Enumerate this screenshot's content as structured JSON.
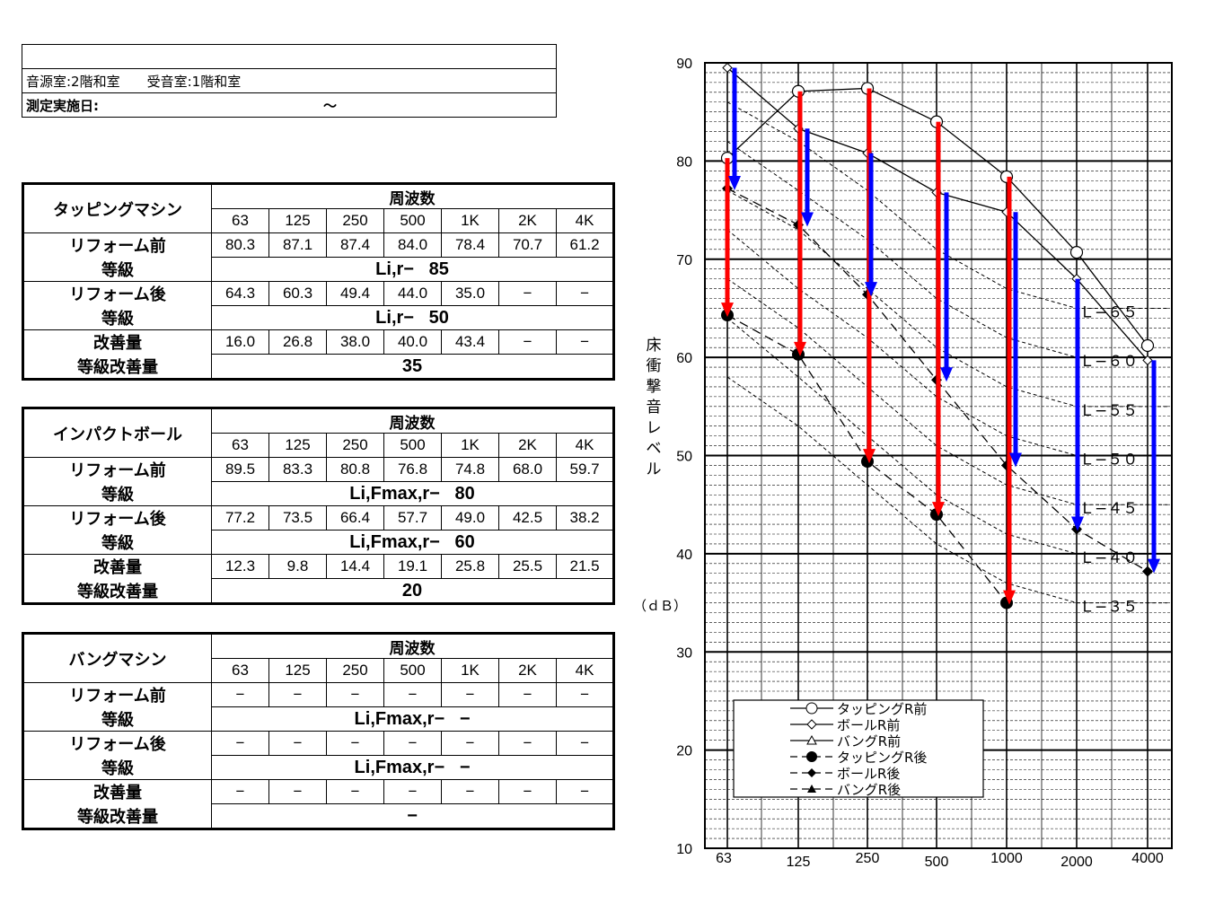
{
  "header": {
    "rooms": "音源室:2階和室　　受音室:1階和室",
    "date_label": "測定実施日:",
    "date_sep": "～"
  },
  "tables": [
    {
      "title": "タッピングマシン",
      "freq_label": "周波数",
      "freqs": [
        "63",
        "125",
        "250",
        "500",
        "1K",
        "2K",
        "4K"
      ],
      "before_label": "リフォーム前",
      "before": [
        "80.3",
        "87.1",
        "87.4",
        "84.0",
        "78.4",
        "70.7",
        "61.2"
      ],
      "grade_label": "等級",
      "grade_before_prefix": "Li,r−",
      "grade_before_value": "85",
      "after_label": "リフォーム後",
      "after": [
        "64.3",
        "60.3",
        "49.4",
        "44.0",
        "35.0",
        "−",
        "−"
      ],
      "grade_after_prefix": "Li,r−",
      "grade_after_value": "50",
      "improve_label": "改善量",
      "improve": [
        "16.0",
        "26.8",
        "38.0",
        "40.0",
        "43.4",
        "−",
        "−"
      ],
      "grade_improve_label": "等級改善量",
      "grade_improve_value": "35"
    },
    {
      "title": "インパクトボール",
      "freq_label": "周波数",
      "freqs": [
        "63",
        "125",
        "250",
        "500",
        "1K",
        "2K",
        "4K"
      ],
      "before_label": "リフォーム前",
      "before": [
        "89.5",
        "83.3",
        "80.8",
        "76.8",
        "74.8",
        "68.0",
        "59.7"
      ],
      "grade_label": "等級",
      "grade_before_prefix": "Li,Fmax,r−",
      "grade_before_value": "80",
      "after_label": "リフォーム後",
      "after": [
        "77.2",
        "73.5",
        "66.4",
        "57.7",
        "49.0",
        "42.5",
        "38.2"
      ],
      "grade_after_prefix": "Li,Fmax,r−",
      "grade_after_value": "60",
      "improve_label": "改善量",
      "improve": [
        "12.3",
        "9.8",
        "14.4",
        "19.1",
        "25.8",
        "25.5",
        "21.5"
      ],
      "grade_improve_label": "等級改善量",
      "grade_improve_value": "20"
    },
    {
      "title": "バングマシン",
      "freq_label": "周波数",
      "freqs": [
        "63",
        "125",
        "250",
        "500",
        "1K",
        "2K",
        "4K"
      ],
      "before_label": "リフォーム前",
      "before": [
        "−",
        "−",
        "−",
        "−",
        "−",
        "−",
        "−"
      ],
      "grade_label": "等級",
      "grade_before_prefix": "Li,Fmax,r−",
      "grade_before_value": "−",
      "after_label": "リフォーム後",
      "after": [
        "−",
        "−",
        "−",
        "−",
        "−",
        "−",
        "−"
      ],
      "grade_after_prefix": "Li,Fmax,r−",
      "grade_after_value": "−",
      "improve_label": "改善量",
      "improve": [
        "−",
        "−",
        "−",
        "−",
        "−",
        "−",
        "−"
      ],
      "grade_improve_label": "等級改善量",
      "grade_improve_value": "−"
    }
  ],
  "colors": {
    "reduce_tapping": "#ff0000",
    "reduce_ball": "#0000ff",
    "line": "#000000"
  },
  "chart_data": {
    "type": "line",
    "ylabel": "床衝撃音レベル",
    "yunit": "（ｄＢ）",
    "ylim": [
      10,
      90
    ],
    "y_ticks": [
      "10",
      "20",
      "30",
      "40",
      "50",
      "60",
      "70",
      "80",
      "90"
    ],
    "x_ticks": [
      "63",
      "125",
      "250",
      "500",
      "1000",
      "2000",
      "4000"
    ],
    "series": [
      {
        "name": "タッピングR前",
        "marker": "open-circle",
        "dash": false,
        "values": [
          80.3,
          87.1,
          87.4,
          84.0,
          78.4,
          70.7,
          61.2
        ]
      },
      {
        "name": "ボールR前",
        "marker": "open-diamond",
        "dash": false,
        "values": [
          89.5,
          83.3,
          80.8,
          76.8,
          74.8,
          68.0,
          59.7
        ]
      },
      {
        "name": "バングR前",
        "marker": "open-triangle",
        "dash": false,
        "values": []
      },
      {
        "name": "タッピングR後",
        "marker": "filled-circle",
        "dash": true,
        "values": [
          64.3,
          60.3,
          49.4,
          44.0,
          35.0,
          null,
          null
        ]
      },
      {
        "name": "ボールR後",
        "marker": "filled-diamond",
        "dash": true,
        "values": [
          77.2,
          73.5,
          66.4,
          57.7,
          49.0,
          42.5,
          38.2
        ]
      },
      {
        "name": "バングR後",
        "marker": "filled-triangle",
        "dash": true,
        "values": []
      }
    ],
    "reference_curves": [
      {
        "label": "Ｌ−６５",
        "values": [
          86,
          82,
          77,
          71,
          67,
          65,
          65
        ]
      },
      {
        "label": "Ｌ−６０",
        "values": [
          82,
          77,
          72,
          66,
          62,
          60,
          60
        ]
      },
      {
        "label": "Ｌ−５５",
        "values": [
          77,
          73,
          67,
          61,
          57,
          55,
          55
        ]
      },
      {
        "label": "Ｌ−５０",
        "values": [
          73,
          67,
          62,
          56,
          52,
          50,
          50
        ]
      },
      {
        "label": "Ｌ−４５",
        "values": [
          68,
          63,
          57,
          51,
          47,
          45,
          45
        ]
      },
      {
        "label": "Ｌ−４０",
        "values": [
          64,
          58,
          52,
          46,
          42,
          40,
          40
        ]
      },
      {
        "label": "Ｌ−３５",
        "values": [
          58,
          53,
          47,
          41,
          37,
          35,
          35
        ]
      }
    ],
    "arrows_tapping": [
      [
        80.3,
        64.3
      ],
      [
        87.1,
        60.3
      ],
      [
        87.4,
        49.4
      ],
      [
        84.0,
        44.0
      ],
      [
        78.4,
        35.0
      ]
    ],
    "arrows_ball": [
      [
        89.5,
        77.2
      ],
      [
        83.3,
        73.5
      ],
      [
        80.8,
        66.4
      ],
      [
        76.8,
        57.7
      ],
      [
        74.8,
        49.0
      ],
      [
        68.0,
        42.5
      ],
      [
        59.7,
        38.2
      ]
    ],
    "grid": true,
    "legend_position": "bottom-left"
  }
}
